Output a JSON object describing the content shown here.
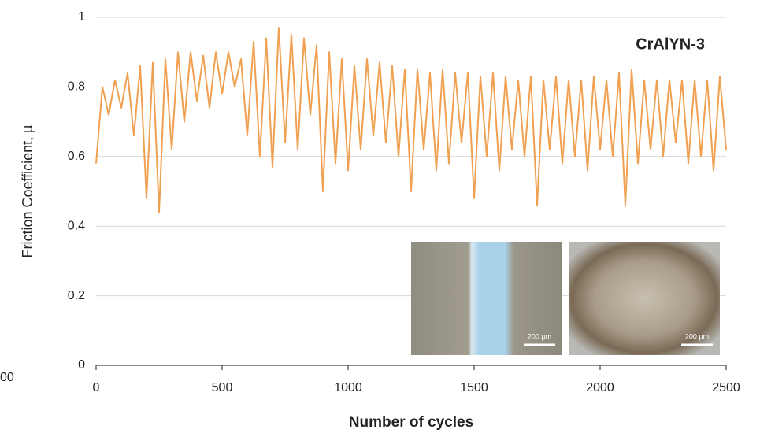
{
  "cropped_label": "00",
  "insets": [
    {
      "scale_label": "200 µm"
    },
    {
      "scale_label": "200 µm"
    }
  ],
  "chart_data": {
    "type": "line",
    "annotation": "CrAlYN-3",
    "x_label": "Number of cycles",
    "y_label": "Friction Coefficient, µ",
    "xlim": [
      0,
      2500
    ],
    "xticks": [
      0,
      500,
      1000,
      1500,
      2000,
      2500
    ],
    "ylim": [
      0,
      1
    ],
    "yticks": [
      0,
      0.2,
      0.4,
      0.6,
      0.8,
      1
    ],
    "grid": true,
    "x": [
      0,
      25,
      50,
      75,
      100,
      125,
      150,
      175,
      200,
      225,
      250,
      275,
      300,
      325,
      350,
      375,
      400,
      425,
      450,
      475,
      500,
      525,
      550,
      575,
      600,
      625,
      650,
      675,
      700,
      725,
      750,
      775,
      800,
      825,
      850,
      875,
      900,
      925,
      950,
      975,
      1000,
      1025,
      1050,
      1075,
      1100,
      1125,
      1150,
      1175,
      1200,
      1225,
      1250,
      1275,
      1300,
      1325,
      1350,
      1375,
      1400,
      1425,
      1450,
      1475,
      1500,
      1525,
      1550,
      1575,
      1600,
      1625,
      1650,
      1675,
      1700,
      1725,
      1750,
      1775,
      1800,
      1825,
      1850,
      1875,
      1900,
      1925,
      1950,
      1975,
      2000,
      2025,
      2050,
      2075,
      2100,
      2125,
      2150,
      2175,
      2200,
      2225,
      2250,
      2275,
      2300,
      2325,
      2350,
      2375,
      2400,
      2425,
      2450,
      2475,
      2500
    ],
    "series": [
      {
        "color": "#f0a050",
        "values": [
          0.58,
          0.8,
          0.72,
          0.82,
          0.74,
          0.84,
          0.66,
          0.86,
          0.48,
          0.87,
          0.44,
          0.88,
          0.62,
          0.9,
          0.7,
          0.9,
          0.76,
          0.89,
          0.74,
          0.9,
          0.78,
          0.9,
          0.8,
          0.88,
          0.66,
          0.93,
          0.6,
          0.94,
          0.57,
          0.97,
          0.64,
          0.95,
          0.62,
          0.94,
          0.72,
          0.92,
          0.5,
          0.9,
          0.58,
          0.88,
          0.56,
          0.86,
          0.62,
          0.88,
          0.66,
          0.87,
          0.64,
          0.86,
          0.6,
          0.85,
          0.5,
          0.85,
          0.62,
          0.84,
          0.56,
          0.85,
          0.58,
          0.84,
          0.64,
          0.84,
          0.48,
          0.83,
          0.6,
          0.84,
          0.56,
          0.83,
          0.62,
          0.82,
          0.6,
          0.83,
          0.46,
          0.82,
          0.62,
          0.83,
          0.58,
          0.82,
          0.6,
          0.82,
          0.56,
          0.83,
          0.62,
          0.82,
          0.6,
          0.84,
          0.46,
          0.85,
          0.58,
          0.82,
          0.62,
          0.82,
          0.6,
          0.82,
          0.64,
          0.82,
          0.58,
          0.82,
          0.6,
          0.82,
          0.56,
          0.83,
          0.62
        ]
      }
    ]
  }
}
